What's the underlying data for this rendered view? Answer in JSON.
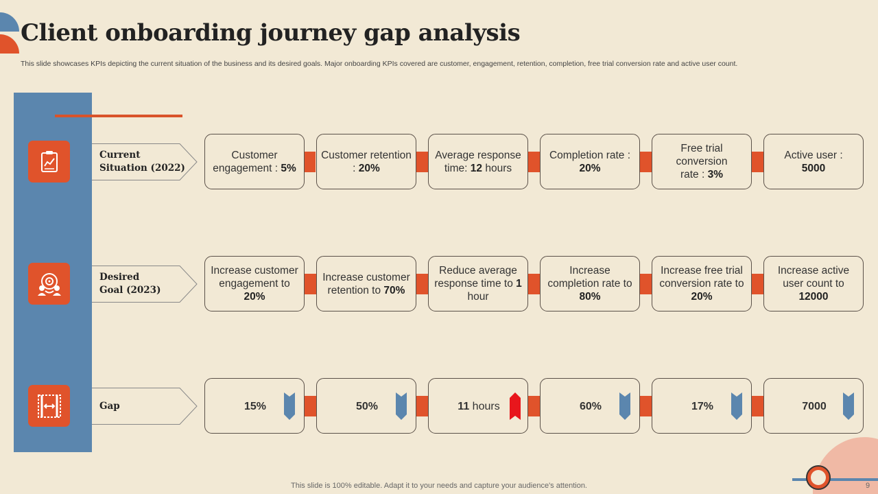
{
  "title": "Client onboarding journey gap analysis",
  "subtitle": "This slide showcases KPIs depicting the current situation of the business and its desired goals. Major onboarding KPIs covered are customer, engagement, retention, completion, free trial conversion rate and active user count.",
  "rows": {
    "current": {
      "label": "Current\nSituation (2022)",
      "icon": "report-document-icon",
      "cards": [
        {
          "pre": "Customer engagement : ",
          "bold": "5%",
          "post": ""
        },
        {
          "pre": "Customer retention : ",
          "bold": "20%",
          "post": ""
        },
        {
          "pre": "Average response time: ",
          "bold": "12",
          "post": " hours"
        },
        {
          "pre": "Completion rate : ",
          "bold": "20%",
          "post": ""
        },
        {
          "pre": "Free trial conversion rate : ",
          "bold": "3%",
          "post": ""
        },
        {
          "pre": "Active user : ",
          "bold": "5000",
          "post": ""
        }
      ]
    },
    "desired": {
      "label": "Desired\nGoal (2023)",
      "icon": "team-goal-icon",
      "cards": [
        {
          "pre": "Increase customer engagement to ",
          "bold": "20%",
          "post": ""
        },
        {
          "pre": "Increase customer retention to ",
          "bold": "70%",
          "post": ""
        },
        {
          "pre": "Reduce average response time to ",
          "bold": "1",
          "post": " hour"
        },
        {
          "pre": "Increase completion rate to ",
          "bold": "80%",
          "post": ""
        },
        {
          "pre": "Increase free trial conversion rate to ",
          "bold": "20%",
          "post": ""
        },
        {
          "pre": "Increase active user count to ",
          "bold": "12000",
          "post": ""
        }
      ]
    },
    "gap": {
      "label": "Gap",
      "icon": "gap-measure-icon",
      "cards": [
        {
          "bold": "15%",
          "post": "",
          "marker_color": "#5b86ae"
        },
        {
          "bold": "50%",
          "post": "",
          "marker_color": "#5b86ae"
        },
        {
          "bold": "11",
          "post": " hours",
          "marker_color": "#e8161c"
        },
        {
          "bold": "60%",
          "post": "",
          "marker_color": "#5b86ae"
        },
        {
          "bold": "17%",
          "post": "",
          "marker_color": "#5b86ae"
        },
        {
          "bold": "7000",
          "post": "",
          "marker_color": "#5b86ae"
        }
      ]
    }
  },
  "footer": "This slide is 100% editable. Adapt it to your needs and capture your audience's attention.",
  "page_number": "9",
  "colors": {
    "accent": "#e0532b",
    "blue": "#5b86ae",
    "background": "#f2e9d5",
    "alert": "#e8161c"
  }
}
